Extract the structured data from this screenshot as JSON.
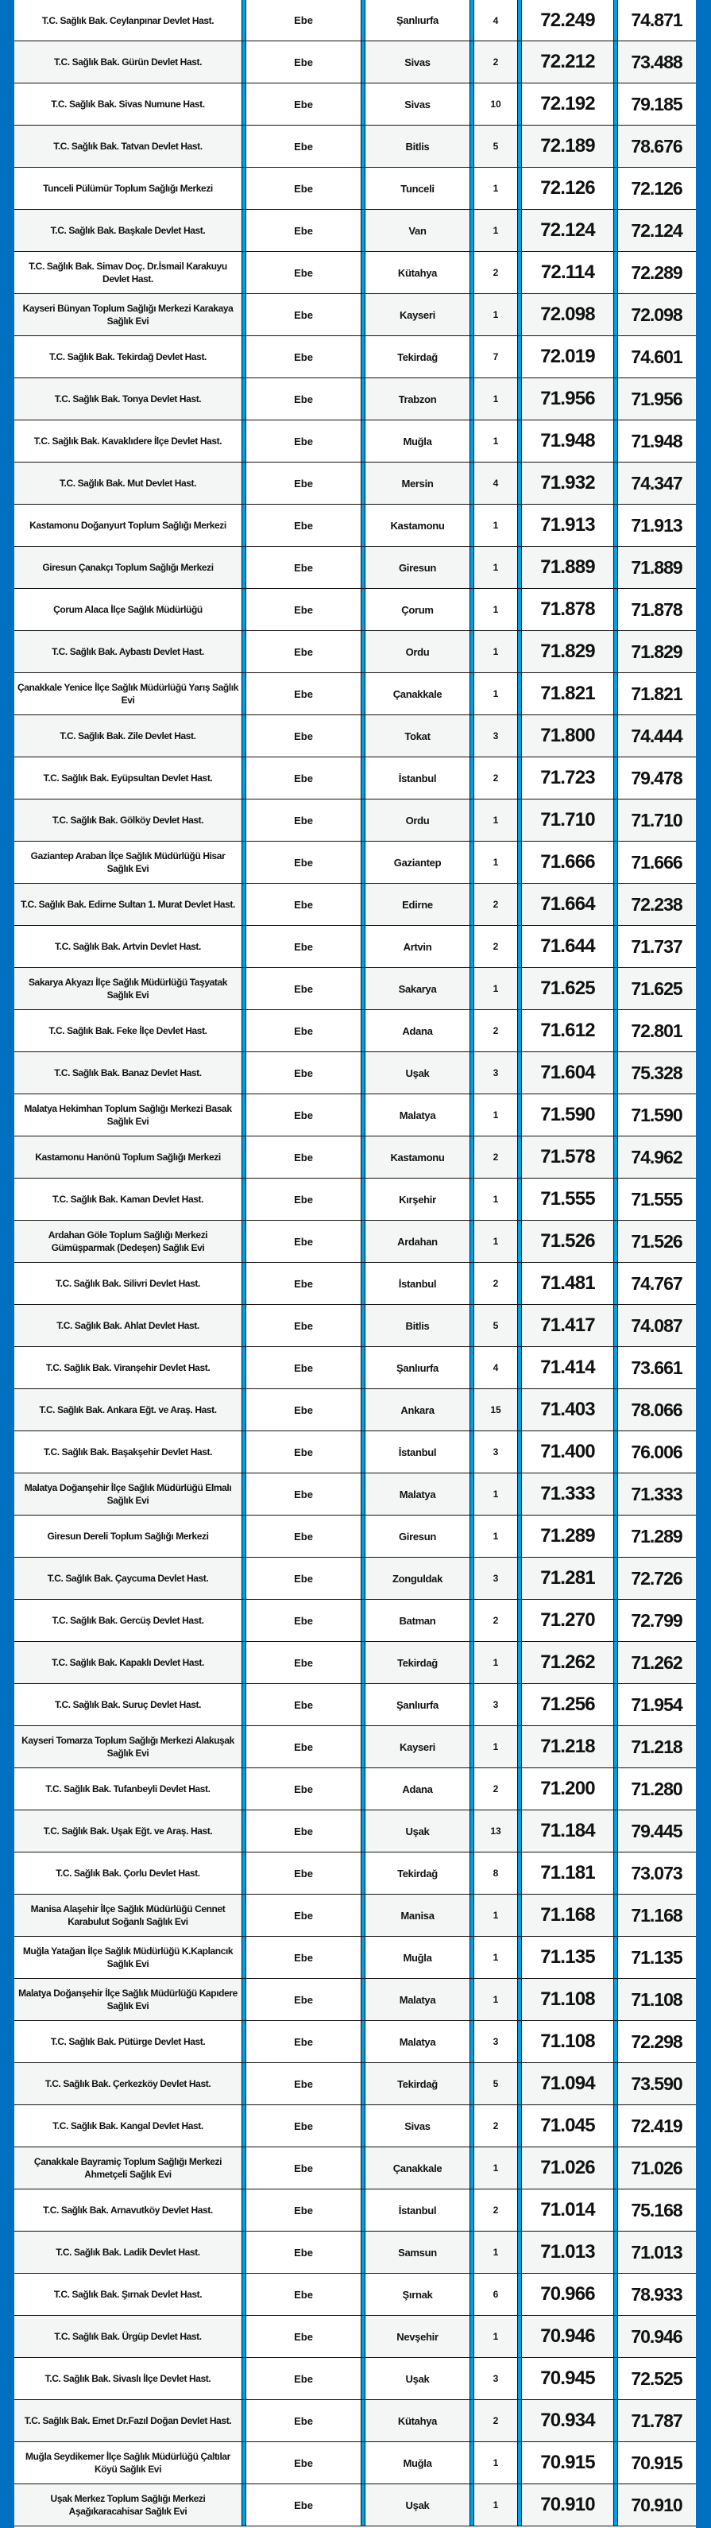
{
  "colors": {
    "edge": "#0070c0",
    "divider": "#00a0e6",
    "alt_row": "#f4f6f6"
  },
  "rows": [
    [
      "T.C. Sağlık Bak. Ceylanpınar Devlet Hast.",
      "Ebe",
      "Şanlıurfa",
      "4",
      "72.249",
      "74.871"
    ],
    [
      "T.C. Sağlık Bak. Gürün Devlet Hast.",
      "Ebe",
      "Sivas",
      "2",
      "72.212",
      "73.488"
    ],
    [
      "T.C. Sağlık Bak. Sivas Numune Hast.",
      "Ebe",
      "Sivas",
      "10",
      "72.192",
      "79.185"
    ],
    [
      "T.C. Sağlık Bak. Tatvan Devlet Hast.",
      "Ebe",
      "Bitlis",
      "5",
      "72.189",
      "78.676"
    ],
    [
      "Tunceli Pülümür Toplum Sağlığı Merkezi",
      "Ebe",
      "Tunceli",
      "1",
      "72.126",
      "72.126"
    ],
    [
      "T.C. Sağlık Bak. Başkale Devlet Hast.",
      "Ebe",
      "Van",
      "1",
      "72.124",
      "72.124"
    ],
    [
      "T.C. Sağlık Bak. Simav Doç. Dr.İsmail Karakuyu Devlet Hast.",
      "Ebe",
      "Kütahya",
      "2",
      "72.114",
      "72.289"
    ],
    [
      "Kayseri Bünyan Toplum Sağlığı Merkezi Karakaya Sağlık Evi",
      "Ebe",
      "Kayseri",
      "1",
      "72.098",
      "72.098"
    ],
    [
      "T.C. Sağlık Bak. Tekirdağ Devlet Hast.",
      "Ebe",
      "Tekirdağ",
      "7",
      "72.019",
      "74.601"
    ],
    [
      "T.C. Sağlık Bak. Tonya Devlet Hast.",
      "Ebe",
      "Trabzon",
      "1",
      "71.956",
      "71.956"
    ],
    [
      "T.C. Sağlık Bak. Kavaklıdere İlçe Devlet Hast.",
      "Ebe",
      "Muğla",
      "1",
      "71.948",
      "71.948"
    ],
    [
      "T.C. Sağlık Bak. Mut Devlet Hast.",
      "Ebe",
      "Mersin",
      "4",
      "71.932",
      "74.347"
    ],
    [
      "Kastamonu Doğanyurt Toplum Sağlığı Merkezi",
      "Ebe",
      "Kastamonu",
      "1",
      "71.913",
      "71.913"
    ],
    [
      "Giresun Çanakçı Toplum Sağlığı Merkezi",
      "Ebe",
      "Giresun",
      "1",
      "71.889",
      "71.889"
    ],
    [
      "Çorum Alaca İlçe Sağlık Müdürlüğü",
      "Ebe",
      "Çorum",
      "1",
      "71.878",
      "71.878"
    ],
    [
      "T.C. Sağlık Bak. Aybastı Devlet Hast.",
      "Ebe",
      "Ordu",
      "1",
      "71.829",
      "71.829"
    ],
    [
      "Çanakkale Yenice İlçe Sağlık Müdürlüğü Yarış Sağlık Evi",
      "Ebe",
      "Çanakkale",
      "1",
      "71.821",
      "71.821"
    ],
    [
      "T.C. Sağlık Bak. Zile Devlet Hast.",
      "Ebe",
      "Tokat",
      "3",
      "71.800",
      "74.444"
    ],
    [
      "T.C. Sağlık Bak. Eyüpsultan Devlet Hast.",
      "Ebe",
      "İstanbul",
      "2",
      "71.723",
      "79.478"
    ],
    [
      "T.C. Sağlık Bak. Gölköy Devlet Hast.",
      "Ebe",
      "Ordu",
      "1",
      "71.710",
      "71.710"
    ],
    [
      "Gaziantep Araban İlçe Sağlık Müdürlüğü Hisar Sağlık Evi",
      "Ebe",
      "Gaziantep",
      "1",
      "71.666",
      "71.666"
    ],
    [
      "T.C. Sağlık Bak. Edirne Sultan 1. Murat Devlet Hast.",
      "Ebe",
      "Edirne",
      "2",
      "71.664",
      "72.238"
    ],
    [
      "T.C. Sağlık Bak. Artvin Devlet Hast.",
      "Ebe",
      "Artvin",
      "2",
      "71.644",
      "71.737"
    ],
    [
      "Sakarya Akyazı İlçe Sağlık Müdürlüğü Taşyatak Sağlık Evi",
      "Ebe",
      "Sakarya",
      "1",
      "71.625",
      "71.625"
    ],
    [
      "T.C. Sağlık Bak. Feke İlçe Devlet Hast.",
      "Ebe",
      "Adana",
      "2",
      "71.612",
      "72.801"
    ],
    [
      "T.C. Sağlık Bak. Banaz Devlet Hast.",
      "Ebe",
      "Uşak",
      "3",
      "71.604",
      "75.328"
    ],
    [
      "Malatya Hekimhan Toplum Sağlığı Merkezi Basak Sağlık Evi",
      "Ebe",
      "Malatya",
      "1",
      "71.590",
      "71.590"
    ],
    [
      "Kastamonu Hanönü Toplum Sağlığı Merkezi",
      "Ebe",
      "Kastamonu",
      "2",
      "71.578",
      "74.962"
    ],
    [
      "T.C. Sağlık Bak. Kaman Devlet Hast.",
      "Ebe",
      "Kırşehir",
      "1",
      "71.555",
      "71.555"
    ],
    [
      "Ardahan Göle Toplum Sağlığı Merkezi Gümüşparmak (Dedeşen) Sağlık Evi",
      "Ebe",
      "Ardahan",
      "1",
      "71.526",
      "71.526"
    ],
    [
      "T.C. Sağlık Bak. Silivri Devlet Hast.",
      "Ebe",
      "İstanbul",
      "2",
      "71.481",
      "74.767"
    ],
    [
      "T.C. Sağlık Bak. Ahlat Devlet Hast.",
      "Ebe",
      "Bitlis",
      "5",
      "71.417",
      "74.087"
    ],
    [
      "T.C. Sağlık Bak. Viranşehir Devlet Hast.",
      "Ebe",
      "Şanlıurfa",
      "4",
      "71.414",
      "73.661"
    ],
    [
      "T.C. Sağlık Bak. Ankara Eğt. ve Araş. Hast.",
      "Ebe",
      "Ankara",
      "15",
      "71.403",
      "78.066"
    ],
    [
      "T.C. Sağlık Bak. Başakşehir Devlet Hast.",
      "Ebe",
      "İstanbul",
      "3",
      "71.400",
      "76.006"
    ],
    [
      "Malatya Doğanşehir İlçe Sağlık Müdürlüğü Elmalı Sağlık Evi",
      "Ebe",
      "Malatya",
      "1",
      "71.333",
      "71.333"
    ],
    [
      "Giresun Dereli Toplum Sağlığı Merkezi",
      "Ebe",
      "Giresun",
      "1",
      "71.289",
      "71.289"
    ],
    [
      "T.C. Sağlık Bak. Çaycuma Devlet Hast.",
      "Ebe",
      "Zonguldak",
      "3",
      "71.281",
      "72.726"
    ],
    [
      "T.C. Sağlık Bak. Gercüş Devlet Hast.",
      "Ebe",
      "Batman",
      "2",
      "71.270",
      "72.799"
    ],
    [
      "T.C. Sağlık Bak. Kapaklı Devlet Hast.",
      "Ebe",
      "Tekirdağ",
      "1",
      "71.262",
      "71.262"
    ],
    [
      "T.C. Sağlık Bak. Suruç Devlet Hast.",
      "Ebe",
      "Şanlıurfa",
      "3",
      "71.256",
      "71.954"
    ],
    [
      "Kayseri Tomarza Toplum Sağlığı Merkezi Alakuşak Sağlık Evi",
      "Ebe",
      "Kayseri",
      "1",
      "71.218",
      "71.218"
    ],
    [
      "T.C. Sağlık Bak. Tufanbeyli Devlet Hast.",
      "Ebe",
      "Adana",
      "2",
      "71.200",
      "71.280"
    ],
    [
      "T.C. Sağlık Bak. Uşak Eğt. ve Araş. Hast.",
      "Ebe",
      "Uşak",
      "13",
      "71.184",
      "79.445"
    ],
    [
      "T.C. Sağlık Bak. Çorlu Devlet Hast.",
      "Ebe",
      "Tekirdağ",
      "8",
      "71.181",
      "73.073"
    ],
    [
      "Manisa Alaşehir İlçe Sağlık Müdürlüğü Cennet Karabulut Soğanlı Sağlık Evi",
      "Ebe",
      "Manisa",
      "1",
      "71.168",
      "71.168"
    ],
    [
      "Muğla Yatağan İlçe Sağlık Müdürlüğü K.Kaplancık Sağlık Evi",
      "Ebe",
      "Muğla",
      "1",
      "71.135",
      "71.135"
    ],
    [
      "Malatya Doğanşehir İlçe Sağlık Müdürlüğü Kapıdere Sağlık Evi",
      "Ebe",
      "Malatya",
      "1",
      "71.108",
      "71.108"
    ],
    [
      "T.C. Sağlık Bak. Pütürge Devlet Hast.",
      "Ebe",
      "Malatya",
      "3",
      "71.108",
      "72.298"
    ],
    [
      "T.C. Sağlık Bak. Çerkezköy Devlet Hast.",
      "Ebe",
      "Tekirdağ",
      "5",
      "71.094",
      "73.590"
    ],
    [
      "T.C. Sağlık Bak. Kangal Devlet Hast.",
      "Ebe",
      "Sivas",
      "2",
      "71.045",
      "72.419"
    ],
    [
      "Çanakkale Bayramiç Toplum Sağlığı Merkezi Ahmetçeli Sağlık Evi",
      "Ebe",
      "Çanakkale",
      "1",
      "71.026",
      "71.026"
    ],
    [
      "T.C. Sağlık Bak. Arnavutköy Devlet Hast.",
      "Ebe",
      "İstanbul",
      "2",
      "71.014",
      "75.168"
    ],
    [
      "T.C. Sağlık Bak. Ladik Devlet Hast.",
      "Ebe",
      "Samsun",
      "1",
      "71.013",
      "71.013"
    ],
    [
      "T.C. Sağlık Bak. Şırnak Devlet Hast.",
      "Ebe",
      "Şırnak",
      "6",
      "70.966",
      "78.933"
    ],
    [
      "T.C. Sağlık Bak. Ürgüp Devlet Hast.",
      "Ebe",
      "Nevşehir",
      "1",
      "70.946",
      "70.946"
    ],
    [
      "T.C. Sağlık Bak. Sivaslı İlçe Devlet Hast.",
      "Ebe",
      "Uşak",
      "3",
      "70.945",
      "72.525"
    ],
    [
      "T.C. Sağlık Bak. Emet Dr.Fazıl Doğan Devlet Hast.",
      "Ebe",
      "Kütahya",
      "2",
      "70.934",
      "71.787"
    ],
    [
      "Muğla Seydikemer İlçe Sağlık Müdürlüğü Çaltılar Köyü Sağlık Evi",
      "Ebe",
      "Muğla",
      "1",
      "70.915",
      "70.915"
    ],
    [
      "Uşak Merkez Toplum Sağlığı Merkezi Aşağıkaracahisar Sağlık Evi",
      "Ebe",
      "Uşak",
      "1",
      "70.910",
      "70.910"
    ]
  ]
}
